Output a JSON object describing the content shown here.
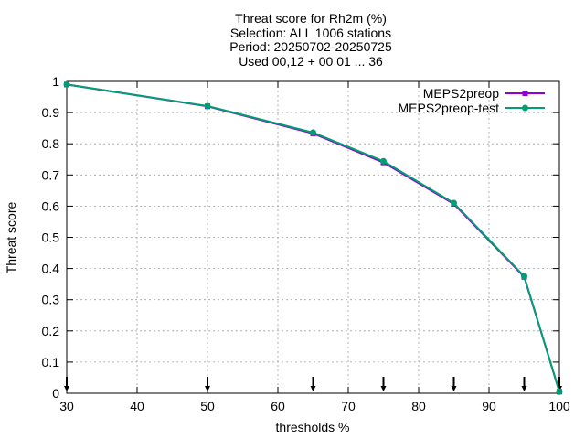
{
  "chart_data": {
    "type": "line",
    "title_lines": [
      "Threat score  for Rh2m (%)",
      "Selection: ALL    1006 stations",
      "Period: 20250702-20250725",
      "Used 00,12 + 00 01 ... 36"
    ],
    "xlabel": "thresholds %",
    "ylabel": "Threat score",
    "xlim": [
      30,
      100
    ],
    "ylim": [
      0,
      1
    ],
    "xticks": [
      30,
      40,
      50,
      60,
      70,
      80,
      90,
      100
    ],
    "yticks": [
      0,
      0.1,
      0.2,
      0.3,
      0.4,
      0.5,
      0.6,
      0.7,
      0.8,
      0.9,
      1
    ],
    "grid": true,
    "legend_position": "top-right",
    "x": [
      30,
      50,
      65,
      75,
      85,
      95,
      100
    ],
    "series": [
      {
        "name": "MEPS2preop",
        "color": "#9400d3",
        "marker": "square",
        "values": [
          0.99,
          0.92,
          0.833,
          0.74,
          0.607,
          0.373,
          0.005
        ]
      },
      {
        "name": "MEPS2preop-test",
        "color": "#009e73",
        "marker": "circle",
        "values": [
          0.99,
          0.921,
          0.836,
          0.744,
          0.61,
          0.375,
          0.005
        ]
      }
    ],
    "threshold_markers": [
      30,
      50,
      65,
      75,
      85,
      95,
      100
    ]
  }
}
